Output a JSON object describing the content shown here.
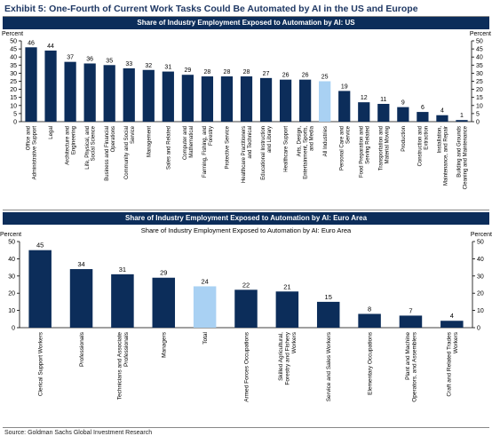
{
  "exhibit_title": "Exhibit 5: One-Fourth of Current Work Tasks Could Be Automated by AI in the US and Europe",
  "source": "Source: Goldman Sachs Global Investment Research",
  "colors": {
    "header_bg": "#0c2d5a",
    "bar": "#0c2d5a",
    "highlight_bar": "#a9d1f3",
    "title": "#1f3864"
  },
  "chart_data": [
    {
      "type": "bar",
      "title": "Share of Industry Employment Exposed to Automation by AI: US",
      "ylabel_left": "Percent",
      "ylabel_right": "Percent",
      "ylim": [
        0,
        50
      ],
      "yticks": [
        0,
        5,
        10,
        15,
        20,
        25,
        30,
        35,
        40,
        45,
        50
      ],
      "grid": false,
      "highlight_category": "All Industries",
      "categories": [
        "Office and Administrative Support",
        "Legal",
        "Architecture and Engineering",
        "Life, Physical, and Social Science",
        "Business and Financial Operations",
        "Community and Social Service",
        "Management",
        "Sales and Related",
        "Computer and Mathematical",
        "Farming, Fishing, and Forestry",
        "Protective Service",
        "Healthcare Practitioners and Technical",
        "Educational Instruction and Library",
        "Healthcare Support",
        "Arts, Design, Entertainment, Sports, and Media",
        "All Industries",
        "Personal Care and Service",
        "Food Preparation and Serving Related",
        "Transportation and Material Moving",
        "Production",
        "Construction and Extraction",
        "Installation, Maintenance, and Repair",
        "Building and Grounds Cleaning and Maintenance"
      ],
      "values": [
        46,
        44,
        37,
        36,
        35,
        33,
        32,
        31,
        29,
        28,
        28,
        28,
        27,
        26,
        26,
        25,
        19,
        12,
        11,
        9,
        6,
        4,
        1
      ]
    },
    {
      "type": "bar",
      "title": "Share of Industry Employment Exposed to Automation by AI: Euro Area",
      "ylabel_left": "Percent",
      "ylabel_right": "Percent",
      "ylim": [
        0,
        50
      ],
      "yticks": [
        0,
        10,
        20,
        30,
        40,
        50
      ],
      "grid": false,
      "highlight_category": "Total",
      "categories": [
        "Clerical Support Workers",
        "Professionals",
        "Technicians and Associate Professionals",
        "Managers",
        "Total",
        "Armed Forces Occupations",
        "Skilled Agricultural, Forestry and Fishery Workers",
        "Service and Sales Workers",
        "Elementary Occupations",
        "Plant and Machine Operators, and Assemblers",
        "Craft and Related Trades Workers"
      ],
      "values": [
        45,
        34,
        31,
        29,
        24,
        22,
        21,
        15,
        8,
        7,
        4
      ]
    }
  ]
}
